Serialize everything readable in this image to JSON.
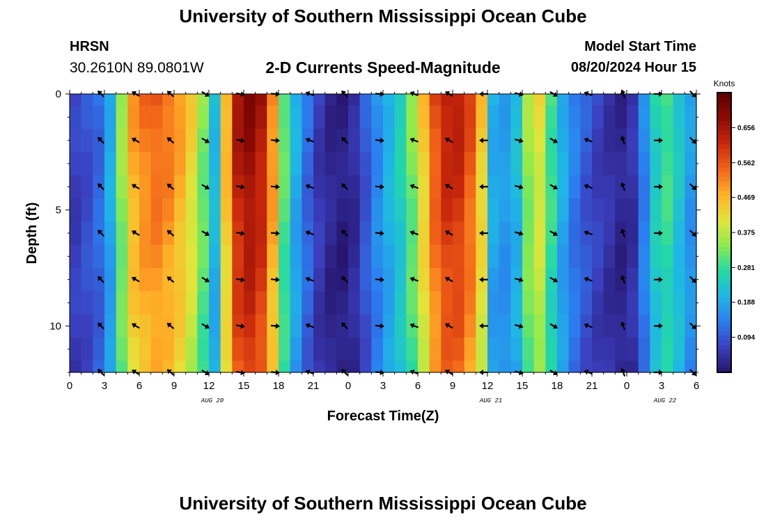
{
  "header": {
    "title": "University of Southern Mississippi Ocean Cube",
    "station": "HRSN",
    "coordinates": "30.2610N  89.0801W",
    "subtitle": "2-D Currents Speed-Magnitude",
    "model_start_label": "Model Start Time",
    "model_start_value": "08/20/2024 Hour 15"
  },
  "footer": {
    "title": "University of Southern Mississippi Ocean Cube"
  },
  "chart_data": {
    "type": "heatmap",
    "title": "2-D Currents Speed-Magnitude",
    "xlabel": "Forecast Time(Z)",
    "ylabel": "Depth (ft)",
    "x_hours_range": [
      0,
      54
    ],
    "x_hour_step": 1,
    "x_ticks": [
      {
        "h": 0,
        "label": "0"
      },
      {
        "h": 3,
        "label": "3"
      },
      {
        "h": 6,
        "label": "6"
      },
      {
        "h": 9,
        "label": "9"
      },
      {
        "h": 12,
        "label": "12"
      },
      {
        "h": 15,
        "label": "15"
      },
      {
        "h": 18,
        "label": "18"
      },
      {
        "h": 21,
        "label": "21"
      },
      {
        "h": 24,
        "label": "0"
      },
      {
        "h": 27,
        "label": "3"
      },
      {
        "h": 30,
        "label": "6"
      },
      {
        "h": 33,
        "label": "9"
      },
      {
        "h": 36,
        "label": "12"
      },
      {
        "h": 39,
        "label": "15"
      },
      {
        "h": 42,
        "label": "18"
      },
      {
        "h": 45,
        "label": "21"
      },
      {
        "h": 48,
        "label": "0"
      },
      {
        "h": 51,
        "label": "3"
      },
      {
        "h": 54,
        "label": "6"
      }
    ],
    "date_labels": [
      {
        "h": 12.3,
        "label": "AUG 20"
      },
      {
        "h": 36.3,
        "label": "AUG 21"
      },
      {
        "h": 51.3,
        "label": "AUG 22"
      }
    ],
    "depth_range": [
      0,
      12
    ],
    "depth_levels": [
      0,
      1,
      2,
      3,
      4,
      5,
      6,
      7,
      8,
      9,
      10,
      11,
      12
    ],
    "y_ticks": [
      0,
      5,
      10
    ],
    "speed_profile_knots": [
      0.07,
      0.09,
      0.12,
      0.2,
      0.36,
      0.5,
      0.54,
      0.56,
      0.54,
      0.5,
      0.44,
      0.34,
      0.22,
      0.48,
      0.66,
      0.7,
      0.66,
      0.52,
      0.32,
      0.2,
      0.12,
      0.06,
      0.03,
      0.02,
      0.04,
      0.1,
      0.16,
      0.21,
      0.26,
      0.34,
      0.46,
      0.58,
      0.64,
      0.64,
      0.58,
      0.46,
      0.2,
      0.18,
      0.22,
      0.36,
      0.42,
      0.3,
      0.2,
      0.14,
      0.1,
      0.07,
      0.05,
      0.03,
      0.05,
      0.15,
      0.26,
      0.3,
      0.24,
      0.18,
      0.16
    ],
    "current_arrows": {
      "hours": [
        2.7,
        5.7,
        8.7,
        11.7,
        14.7,
        17.7,
        20.7,
        23.7,
        26.7,
        29.7,
        32.7,
        35.7,
        38.7,
        41.7,
        44.7,
        47.7,
        50.7,
        53.7
      ],
      "depths": [
        0,
        2,
        4,
        6,
        8,
        10,
        12
      ],
      "direction_deg": [
        225,
        240,
        230,
        60,
        80,
        85,
        250,
        225,
        85,
        250,
        240,
        270,
        75,
        60,
        250,
        200,
        90,
        45
      ]
    },
    "colorbar": {
      "label": "Knots",
      "range": [
        0.0,
        0.75
      ],
      "ticks": [
        0.094,
        0.188,
        0.281,
        0.375,
        0.469,
        0.562,
        0.656
      ],
      "colors": [
        "#26146b",
        "#3b3fbe",
        "#2c7df0",
        "#1fb6e6",
        "#24d9a4",
        "#8ceb4f",
        "#e3e43a",
        "#ffb128",
        "#f36419",
        "#c9280c",
        "#8e0b05",
        "#5e0000"
      ]
    }
  }
}
